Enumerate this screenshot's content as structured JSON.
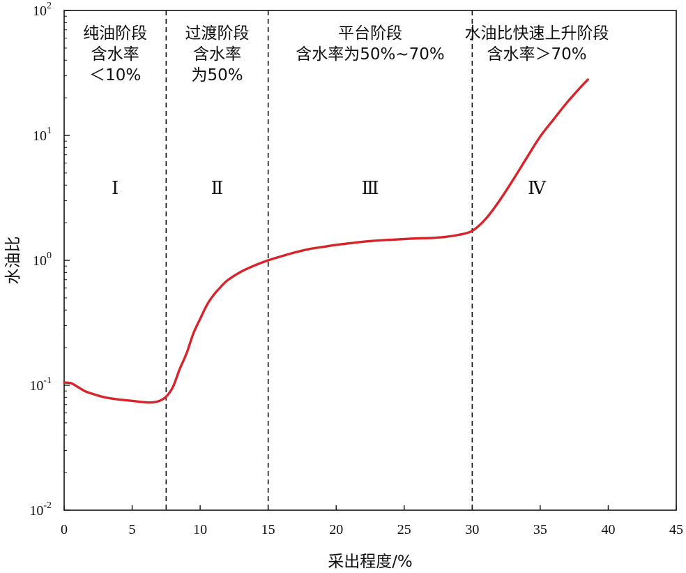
{
  "chart_data": {
    "type": "line",
    "xlabel": "采出程度/%",
    "ylabel": "水油比",
    "x_ticks": [
      "0",
      "5",
      "10",
      "15",
      "20",
      "25",
      "30",
      "35",
      "40",
      "45"
    ],
    "y_ticks": [
      {
        "base": "10",
        "exp": "-2"
      },
      {
        "base": "10",
        "exp": "-1"
      },
      {
        "base": "10",
        "exp": "0"
      },
      {
        "base": "10",
        "exp": "1"
      },
      {
        "base": "10",
        "exp": "2"
      }
    ],
    "xlim": [
      0,
      45
    ],
    "ylim": [
      0.01,
      100
    ],
    "y_scale": "log",
    "grid": false,
    "boundaries": [
      7.5,
      15,
      30
    ],
    "line_color": "#d8232a",
    "stages": [
      {
        "roman": "Ⅰ",
        "lines": [
          "纯油阶段",
          "含水率",
          "＜10%"
        ]
      },
      {
        "roman": "Ⅱ",
        "lines": [
          "过渡阶段",
          "含水率",
          "为50%"
        ]
      },
      {
        "roman": "Ⅲ",
        "lines": [
          "平台阶段",
          "含水率为50%~70%"
        ]
      },
      {
        "roman": "Ⅳ",
        "lines": [
          "水油比快速上升阶段",
          "含水率＞70%"
        ]
      }
    ],
    "series": [
      {
        "x": [
          0,
          0.5,
          1,
          1.5,
          2,
          3,
          4,
          5,
          6,
          6.5,
          7,
          7.5,
          8,
          8.5,
          9,
          9.5,
          10,
          10.5,
          11,
          11.5,
          12,
          13,
          14,
          15,
          16,
          17,
          18,
          19,
          20,
          21,
          22,
          23,
          24,
          25,
          26,
          27,
          28,
          29,
          30,
          31,
          32,
          33,
          34,
          35,
          36,
          37,
          38,
          38.5
        ],
        "y": [
          0.105,
          0.104,
          0.097,
          0.09,
          0.086,
          0.08,
          0.077,
          0.075,
          0.073,
          0.073,
          0.075,
          0.081,
          0.097,
          0.135,
          0.18,
          0.26,
          0.34,
          0.44,
          0.53,
          0.61,
          0.69,
          0.81,
          0.91,
          1.0,
          1.08,
          1.16,
          1.23,
          1.28,
          1.33,
          1.37,
          1.41,
          1.44,
          1.46,
          1.48,
          1.5,
          1.51,
          1.54,
          1.6,
          1.72,
          2.15,
          3.0,
          4.4,
          6.6,
          9.8,
          13.5,
          18.5,
          24.5,
          28
        ]
      }
    ]
  }
}
